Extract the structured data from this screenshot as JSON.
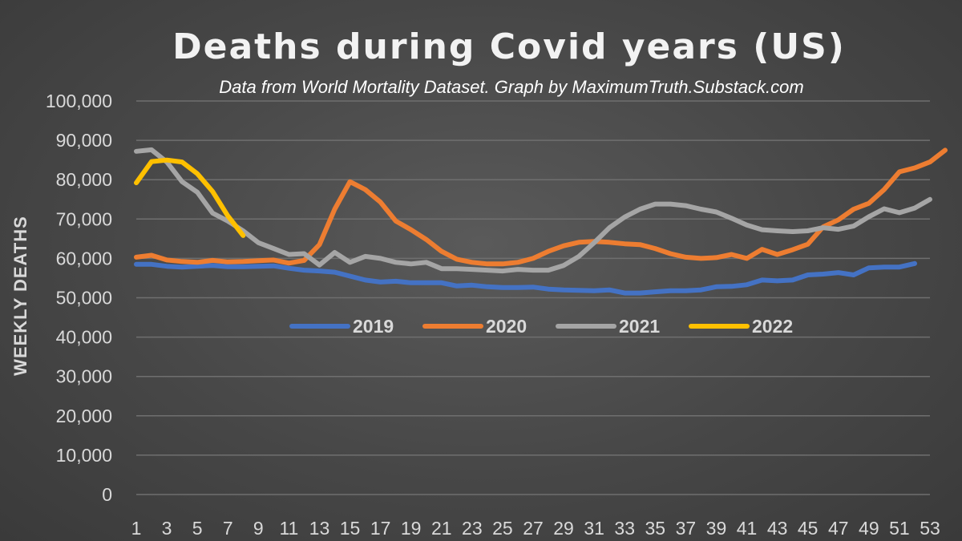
{
  "chart_data": {
    "type": "line",
    "title": "Deaths during Covid years (US)",
    "subtitle": "Data from World Mortality Dataset. Graph by MaximumTruth.Substack.com",
    "xlabel": "",
    "ylabel": "WEEKLY DEATHS",
    "xlim": [
      1,
      53
    ],
    "ylim": [
      0,
      100000
    ],
    "x_ticks": [
      1,
      3,
      5,
      7,
      9,
      11,
      13,
      15,
      17,
      19,
      21,
      23,
      25,
      27,
      29,
      31,
      33,
      35,
      37,
      39,
      41,
      43,
      45,
      47,
      49,
      51,
      53
    ],
    "y_ticks": [
      0,
      10000,
      20000,
      30000,
      40000,
      50000,
      60000,
      70000,
      80000,
      90000,
      100000
    ],
    "y_tick_labels": [
      "0",
      "10,000",
      "20,000",
      "30,000",
      "40,000",
      "50,000",
      "60,000",
      "70,000",
      "80,000",
      "90,000",
      "100,000"
    ],
    "grid": true,
    "legend_position": "center",
    "series": [
      {
        "name": "2019",
        "color": "#4472c4",
        "values": [
          58500,
          58500,
          58000,
          57800,
          58000,
          58200,
          57900,
          57900,
          58000,
          58100,
          57500,
          57000,
          56800,
          56500,
          55500,
          54500,
          54000,
          54200,
          53800,
          53800,
          53800,
          53000,
          53200,
          52800,
          52600,
          52600,
          52700,
          52200,
          52000,
          51900,
          51800,
          52000,
          51200,
          51200,
          51500,
          51800,
          51800,
          52000,
          52800,
          52900,
          53300,
          54500,
          54300,
          54500,
          55800,
          56000,
          56400,
          55800,
          57600,
          57800,
          57800,
          58700
        ]
      },
      {
        "name": "2020",
        "color": "#ed7d31",
        "values": [
          60300,
          60800,
          59600,
          59200,
          59000,
          59500,
          59100,
          59200,
          59400,
          59600,
          58800,
          59500,
          63500,
          72500,
          79500,
          77500,
          74300,
          69500,
          67300,
          64800,
          61800,
          59800,
          59000,
          58600,
          58600,
          59000,
          60000,
          61800,
          63200,
          64100,
          64300,
          64100,
          63700,
          63500,
          62500,
          61200,
          60300,
          60000,
          60200,
          61000,
          60000,
          62300,
          61000,
          62200,
          63600,
          68000,
          69800,
          72500,
          74000,
          77500,
          82000,
          83000,
          84500,
          87500
        ]
      },
      {
        "name": "2021",
        "color": "#a5a5a5",
        "values": [
          87200,
          87600,
          84500,
          79500,
          76800,
          71500,
          69500,
          67000,
          64000,
          62500,
          61000,
          61200,
          58300,
          61500,
          59000,
          60500,
          60000,
          59000,
          58600,
          59000,
          57400,
          57400,
          57200,
          57000,
          56800,
          57200,
          57000,
          57000,
          58200,
          60500,
          64000,
          67800,
          70500,
          72500,
          73800,
          73800,
          73400,
          72500,
          71800,
          70200,
          68500,
          67300,
          67000,
          66800,
          67000,
          67800,
          67400,
          68200,
          70600,
          72600,
          71600,
          72800,
          75000
        ]
      },
      {
        "name": "2022",
        "color": "#ffc000",
        "values": [
          79200,
          84600,
          85000,
          84500,
          81500,
          77000,
          70800,
          65800
        ]
      }
    ]
  }
}
